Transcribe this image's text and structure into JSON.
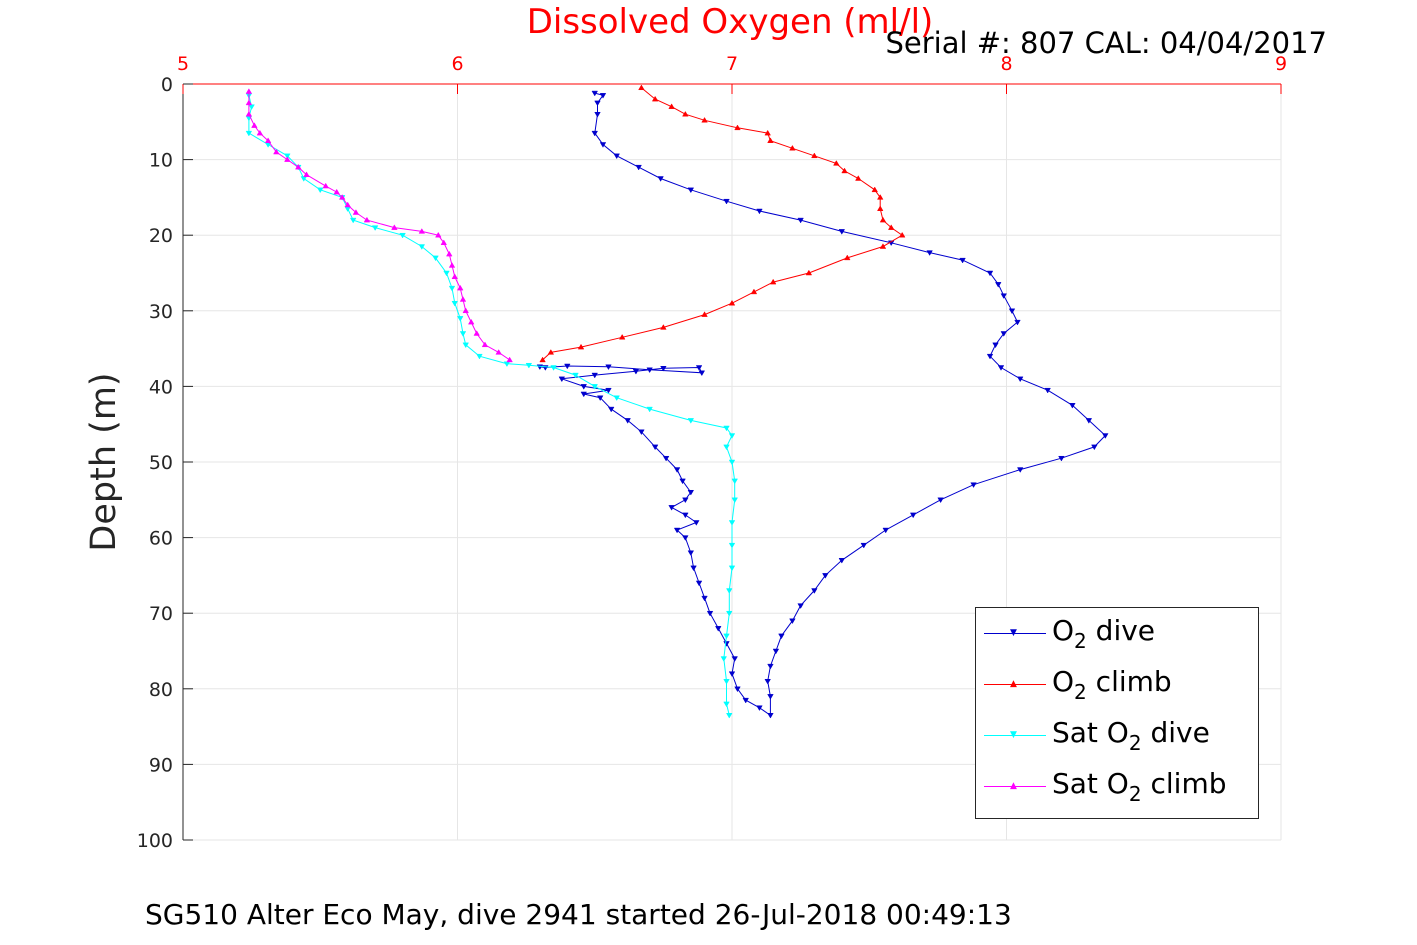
{
  "header": {
    "title": "Dissolved Oxygen (ml/l)",
    "serial": "Serial #: 807  CAL: 04/04/2017"
  },
  "caption": "SG510 Alter Eco May, dive 2941 started 26-Jul-2018 00:49:13",
  "legend": {
    "o2_prefix": "O",
    "o2_sub": "2",
    "sat_prefix": "Sat O",
    "dive_suffix": " dive",
    "climb_suffix": " climb"
  },
  "colors": {
    "o2_dive": "#0000cd",
    "o2_climb": "#ff0000",
    "sat_dive": "#00ffff",
    "sat_climb": "#ff00ff",
    "top_axis": "#ff0000",
    "grid": "#e6e6e6"
  },
  "chart_data": {
    "type": "line",
    "title": "Dissolved Oxygen (ml/l)",
    "xlabel": "",
    "ylabel": "Depth (m)",
    "xlim": [
      5,
      9
    ],
    "ylim": [
      0,
      100
    ],
    "y_reversed": true,
    "x_axis_position": "top",
    "xticks": [
      5,
      6,
      7,
      8,
      9
    ],
    "yticks": [
      0,
      10,
      20,
      30,
      40,
      50,
      60,
      70,
      80,
      90,
      100
    ],
    "grid": true,
    "legend_position": "bottom-right",
    "series": [
      {
        "name": "O2 dive",
        "marker": "triangle-down",
        "points": [
          [
            6.5,
            1.2
          ],
          [
            6.53,
            1.5
          ],
          [
            6.51,
            2.5
          ],
          [
            6.51,
            4
          ],
          [
            6.5,
            6.5
          ],
          [
            6.53,
            8
          ],
          [
            6.58,
            9.5
          ],
          [
            6.66,
            11
          ],
          [
            6.74,
            12.5
          ],
          [
            6.85,
            14
          ],
          [
            6.98,
            15.5
          ],
          [
            7.1,
            16.8
          ],
          [
            7.25,
            18
          ],
          [
            7.4,
            19.5
          ],
          [
            7.58,
            21
          ],
          [
            7.72,
            22.3
          ],
          [
            7.84,
            23.3
          ],
          [
            7.94,
            25
          ],
          [
            7.97,
            26.5
          ],
          [
            7.99,
            28
          ],
          [
            8.02,
            30
          ],
          [
            8.04,
            31.5
          ],
          [
            7.99,
            33
          ],
          [
            7.96,
            34.5
          ],
          [
            7.94,
            36
          ],
          [
            7.98,
            37.5
          ],
          [
            8.05,
            39
          ],
          [
            8.15,
            40.5
          ],
          [
            8.24,
            42.5
          ],
          [
            8.3,
            44.5
          ],
          [
            8.36,
            46.5
          ],
          [
            8.32,
            48
          ],
          [
            8.2,
            49.5
          ],
          [
            8.05,
            51
          ],
          [
            7.88,
            53
          ],
          [
            7.76,
            55
          ],
          [
            7.66,
            57
          ],
          [
            7.56,
            59
          ],
          [
            7.48,
            61
          ],
          [
            7.4,
            63
          ],
          [
            7.34,
            65
          ],
          [
            7.3,
            67
          ],
          [
            7.25,
            69
          ],
          [
            7.22,
            71
          ],
          [
            7.18,
            73
          ],
          [
            7.16,
            75
          ],
          [
            7.14,
            77
          ],
          [
            7.13,
            79
          ],
          [
            7.14,
            81
          ],
          [
            7.14,
            83.5
          ],
          [
            7.1,
            82.5
          ],
          [
            7.05,
            81.5
          ],
          [
            7.02,
            80
          ],
          [
            7.0,
            78
          ],
          [
            7.01,
            76
          ],
          [
            6.98,
            74
          ],
          [
            6.95,
            72
          ],
          [
            6.92,
            70
          ],
          [
            6.9,
            68
          ],
          [
            6.88,
            66
          ],
          [
            6.86,
            64
          ],
          [
            6.85,
            62
          ],
          [
            6.83,
            60
          ],
          [
            6.8,
            59
          ],
          [
            6.87,
            58
          ],
          [
            6.83,
            57
          ],
          [
            6.78,
            56
          ],
          [
            6.83,
            55
          ],
          [
            6.85,
            54
          ],
          [
            6.82,
            52.5
          ],
          [
            6.8,
            51
          ],
          [
            6.76,
            49.5
          ],
          [
            6.72,
            48
          ],
          [
            6.67,
            46
          ],
          [
            6.62,
            44.5
          ],
          [
            6.56,
            43
          ],
          [
            6.52,
            41.5
          ],
          [
            6.46,
            41
          ],
          [
            6.55,
            40.5
          ],
          [
            6.46,
            40
          ],
          [
            6.38,
            39
          ],
          [
            6.5,
            38.5
          ],
          [
            6.65,
            38
          ],
          [
            6.75,
            37.6
          ],
          [
            6.88,
            37.5
          ],
          [
            6.89,
            38.2
          ],
          [
            6.7,
            37.8
          ],
          [
            6.55,
            37.4
          ],
          [
            6.4,
            37.3
          ],
          [
            6.32,
            37.5
          ],
          [
            6.3,
            37.4
          ]
        ]
      },
      {
        "name": "O2 climb",
        "marker": "triangle-up",
        "points": [
          [
            6.31,
            36.5
          ],
          [
            6.34,
            35.5
          ],
          [
            6.45,
            34.8
          ],
          [
            6.6,
            33.5
          ],
          [
            6.75,
            32.2
          ],
          [
            6.9,
            30.5
          ],
          [
            7.0,
            29
          ],
          [
            7.08,
            27.5
          ],
          [
            7.15,
            26.2
          ],
          [
            7.28,
            25
          ],
          [
            7.42,
            23
          ],
          [
            7.55,
            21.5
          ],
          [
            7.62,
            20
          ],
          [
            7.58,
            19
          ],
          [
            7.55,
            18
          ],
          [
            7.54,
            16.5
          ],
          [
            7.54,
            15
          ],
          [
            7.52,
            14
          ],
          [
            7.46,
            12.5
          ],
          [
            7.41,
            11.5
          ],
          [
            7.38,
            10.5
          ],
          [
            7.3,
            9.5
          ],
          [
            7.22,
            8.5
          ],
          [
            7.14,
            7.5
          ],
          [
            7.13,
            6.5
          ],
          [
            7.02,
            5.8
          ],
          [
            6.9,
            4.8
          ],
          [
            6.83,
            4
          ],
          [
            6.78,
            3
          ],
          [
            6.72,
            2
          ],
          [
            6.67,
            0.5
          ]
        ]
      },
      {
        "name": "Sat O2 dive",
        "marker": "triangle-down",
        "points": [
          [
            5.24,
            1.5
          ],
          [
            5.25,
            3
          ],
          [
            5.24,
            4.5
          ],
          [
            5.24,
            6.5
          ],
          [
            5.31,
            8
          ],
          [
            5.38,
            9.5
          ],
          [
            5.42,
            11
          ],
          [
            5.44,
            12.5
          ],
          [
            5.5,
            14
          ],
          [
            5.58,
            15
          ],
          [
            5.6,
            16.5
          ],
          [
            5.62,
            18
          ],
          [
            5.7,
            19
          ],
          [
            5.8,
            20
          ],
          [
            5.87,
            21.5
          ],
          [
            5.92,
            23
          ],
          [
            5.96,
            25
          ],
          [
            5.98,
            27
          ],
          [
            5.99,
            29
          ],
          [
            6.01,
            31
          ],
          [
            6.02,
            33
          ],
          [
            6.03,
            34.5
          ],
          [
            6.08,
            36
          ],
          [
            6.18,
            37
          ],
          [
            6.26,
            37.2
          ],
          [
            6.35,
            37.5
          ],
          [
            6.43,
            38.5
          ],
          [
            6.5,
            40
          ],
          [
            6.58,
            41.5
          ],
          [
            6.7,
            43
          ],
          [
            6.85,
            44.5
          ],
          [
            6.98,
            45.5
          ],
          [
            7.0,
            46.5
          ],
          [
            6.98,
            48
          ],
          [
            7.0,
            50
          ],
          [
            7.01,
            52.5
          ],
          [
            7.01,
            55
          ],
          [
            7.0,
            58
          ],
          [
            7.0,
            61
          ],
          [
            7.0,
            64
          ],
          [
            6.99,
            67
          ],
          [
            6.99,
            70
          ],
          [
            6.98,
            73
          ],
          [
            6.97,
            76
          ],
          [
            6.98,
            79
          ],
          [
            6.98,
            82
          ],
          [
            6.99,
            83.5
          ]
        ]
      },
      {
        "name": "Sat O2 climb",
        "marker": "triangle-up",
        "points": [
          [
            6.19,
            36.5
          ],
          [
            6.15,
            35.5
          ],
          [
            6.1,
            34.5
          ],
          [
            6.07,
            33
          ],
          [
            6.05,
            31.5
          ],
          [
            6.03,
            30
          ],
          [
            6.02,
            28.5
          ],
          [
            6.01,
            27
          ],
          [
            5.99,
            25.5
          ],
          [
            5.98,
            24
          ],
          [
            5.97,
            22.5
          ],
          [
            5.95,
            21
          ],
          [
            5.93,
            20
          ],
          [
            5.87,
            19.5
          ],
          [
            5.77,
            19
          ],
          [
            5.67,
            18
          ],
          [
            5.63,
            17
          ],
          [
            5.6,
            16
          ],
          [
            5.58,
            15
          ],
          [
            5.56,
            14.3
          ],
          [
            5.52,
            13.5
          ],
          [
            5.45,
            12
          ],
          [
            5.42,
            11
          ],
          [
            5.38,
            10
          ],
          [
            5.34,
            9
          ],
          [
            5.31,
            7.5
          ],
          [
            5.28,
            6.5
          ],
          [
            5.26,
            5.5
          ],
          [
            5.24,
            4
          ],
          [
            5.24,
            2.5
          ],
          [
            5.24,
            1
          ]
        ]
      }
    ]
  }
}
